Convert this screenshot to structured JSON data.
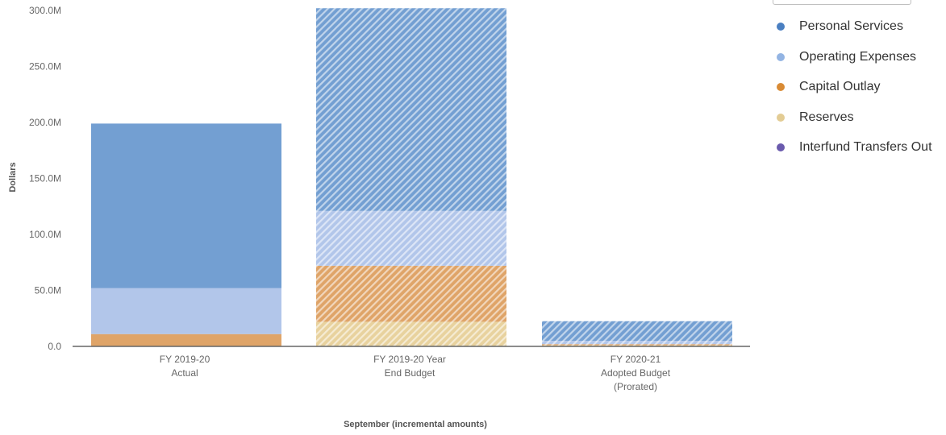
{
  "chart_data": {
    "type": "bar",
    "stacked": true,
    "title": "",
    "xlabel": "September (incremental amounts)",
    "ylabel": "Dollars",
    "ylim": [
      0,
      300000000
    ],
    "y_ticks": [
      "0.0",
      "50.0M",
      "100.0M",
      "150.0M",
      "200.0M",
      "250.0M",
      "300.0M"
    ],
    "categories": [
      {
        "line1": "FY 2019-20",
        "line2": "Actual",
        "line3": ""
      },
      {
        "line1": "FY 2019-20 Year",
        "line2": "End Budget",
        "line3": ""
      },
      {
        "line1": "FY 2020-21",
        "line2": "Adopted Budget",
        "line3": "(Prorated)"
      }
    ],
    "category_hatched": [
      false,
      true,
      true
    ],
    "series": [
      {
        "name": "Reserves",
        "color": "#e8d29e",
        "values": [
          0,
          22000000,
          1000000
        ]
      },
      {
        "name": "Capital Outlay",
        "color": "#dfa468",
        "values": [
          11000000,
          50000000,
          1000000
        ]
      },
      {
        "name": "Operating Expenses",
        "color": "#b2c6ea",
        "values": [
          41000000,
          49000000,
          3000000
        ]
      },
      {
        "name": "Personal Services",
        "color": "#739fd2",
        "values": [
          147000000,
          181000000,
          17500000
        ]
      },
      {
        "name": "Interfund Transfers Out",
        "color": "#6a5aad",
        "values": [
          0,
          0,
          0
        ]
      }
    ],
    "legend_position": "right",
    "grid": false
  },
  "legend": {
    "items": [
      {
        "label": "Personal Services",
        "color": "#4a7fc1"
      },
      {
        "label": "Operating Expenses",
        "color": "#93b4e3"
      },
      {
        "label": "Capital Outlay",
        "color": "#d98b35"
      },
      {
        "label": "Reserves",
        "color": "#e3cc94"
      },
      {
        "label": "Interfund Transfers Out",
        "color": "#6a5aad"
      }
    ]
  }
}
